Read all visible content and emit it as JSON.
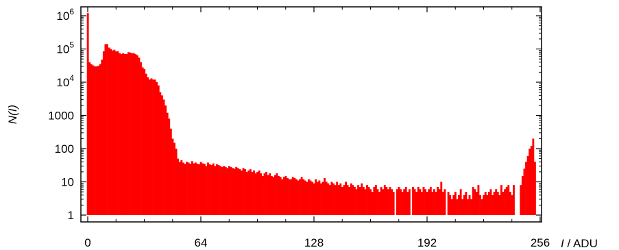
{
  "chart_data": {
    "type": "bar",
    "subtype": "histogram",
    "title": "",
    "xlabel_var": "I",
    "xlabel_unit": " / ADU",
    "ylabel": "N(I)",
    "xlim": [
      -1.5,
      249
    ],
    "ylim": [
      1,
      1500000
    ],
    "y_scale": "log",
    "grid": false,
    "legend": "none",
    "bar_color": "#ff0000",
    "x_ticks": [
      {
        "value": 0,
        "label": "0"
      },
      {
        "value": 64,
        "label": "64"
      },
      {
        "value": 128,
        "label": "128"
      },
      {
        "value": 192,
        "label": "192"
      },
      {
        "value": 256,
        "label": "256"
      }
    ],
    "y_ticks": [
      {
        "value": 1,
        "base": "1",
        "exp": ""
      },
      {
        "value": 10,
        "base": "10",
        "exp": ""
      },
      {
        "value": 100,
        "base": "100",
        "exp": ""
      },
      {
        "value": 1000,
        "base": "1000",
        "exp": ""
      },
      {
        "value": 10000,
        "base": "10",
        "exp": "4"
      },
      {
        "value": 100000,
        "base": "10",
        "exp": "5"
      },
      {
        "value": 1000000,
        "base": "10",
        "exp": "6"
      }
    ],
    "x_start": 0,
    "x_step": 1,
    "values": [
      1200000,
      40000,
      35000,
      32000,
      30000,
      30000,
      31000,
      35000,
      48000,
      85000,
      140000,
      140000,
      110000,
      100000,
      90000,
      95000,
      85000,
      85000,
      75000,
      70000,
      75000,
      70000,
      70000,
      80000,
      78000,
      75000,
      75000,
      70000,
      65000,
      55000,
      40000,
      28000,
      25000,
      18000,
      14000,
      12000,
      13000,
      12000,
      12000,
      10000,
      8000,
      5000,
      4000,
      3000,
      2000,
      1200,
      800,
      400,
      200,
      150,
      100,
      50,
      40,
      45,
      38,
      35,
      40,
      38,
      35,
      42,
      36,
      38,
      35,
      34,
      40,
      36,
      35,
      30,
      38,
      34,
      32,
      36,
      30,
      34,
      32,
      30,
      28,
      30,
      28,
      26,
      30,
      28,
      26,
      25,
      28,
      26,
      24,
      22,
      26,
      24,
      20,
      22,
      24,
      20,
      22,
      18,
      20,
      22,
      18,
      15,
      18,
      20,
      16,
      18,
      15,
      14,
      16,
      18,
      15,
      14,
      12,
      14,
      15,
      13,
      12,
      12,
      14,
      13,
      12,
      11,
      12,
      14,
      12,
      11,
      10,
      12,
      11,
      10,
      9,
      12,
      10,
      11,
      9,
      10,
      13,
      10,
      9,
      8,
      10,
      9,
      8,
      10,
      8,
      9,
      7,
      8,
      10,
      8,
      7,
      9,
      8,
      7,
      6,
      8,
      7,
      9,
      7,
      6,
      8,
      7,
      6,
      5,
      7,
      8,
      6,
      5,
      7,
      6,
      8,
      7,
      6,
      7,
      6,
      5,
      1,
      6,
      7,
      6,
      5,
      6,
      7,
      5,
      6,
      1,
      7,
      6,
      5,
      7,
      6,
      5,
      7,
      6,
      5,
      6,
      7,
      5,
      6,
      5,
      7,
      6,
      10,
      5,
      6,
      1,
      5,
      4,
      3,
      4,
      5,
      3,
      4,
      6,
      3,
      4,
      5,
      3,
      4,
      3,
      7,
      6,
      5,
      8,
      4,
      3,
      4,
      5,
      4,
      5,
      6,
      4,
      5,
      6,
      5,
      4,
      8,
      5,
      6,
      7,
      8,
      5,
      4,
      8,
      1,
      1,
      1,
      8,
      15,
      25,
      40,
      60,
      100,
      120,
      200,
      40
    ]
  }
}
